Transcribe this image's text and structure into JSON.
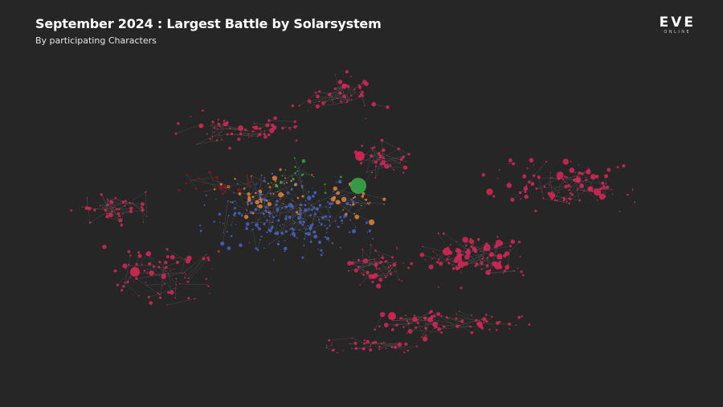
{
  "header": {
    "title": "September 2024 : Largest Battle by Solarsystem",
    "subtitle": "By participating Characters"
  },
  "logo": {
    "text": "EVE",
    "subtext": "ONLINE"
  }
}
